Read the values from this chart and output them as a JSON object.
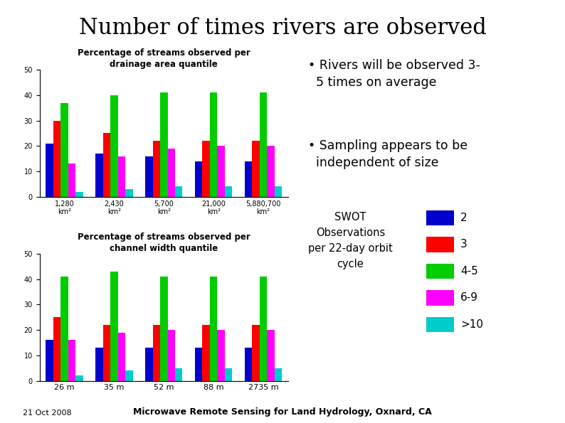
{
  "title": "Number of times rivers are observed",
  "title_fontsize": 22,
  "background_color": "#ffffff",
  "chart1_title": "Percentage of streams observed per\ndrainage area quantile",
  "chart1_categories": [
    "1,280\nkm²",
    "2,430\nkm²",
    "5,700\nkm²",
    "21,000\nkm²",
    "5,880,700\nkm²"
  ],
  "chart1_ylim": [
    0,
    50
  ],
  "chart1_yticks": [
    0,
    10,
    20,
    30,
    40,
    50
  ],
  "chart1_data": {
    "2": [
      21,
      17,
      16,
      14,
      14
    ],
    "3": [
      30,
      25,
      22,
      22,
      22
    ],
    "4-5": [
      37,
      40,
      41,
      41,
      41
    ],
    "6-9": [
      13,
      16,
      19,
      20,
      20
    ],
    ">10": [
      2,
      3,
      4,
      4,
      4
    ]
  },
  "chart2_title": "Percentage of streams observed per\nchannel width quantile",
  "chart2_categories": [
    "26 m",
    "35 m",
    "52 m",
    "88 m",
    "2735 m"
  ],
  "chart2_ylim": [
    0,
    50
  ],
  "chart2_yticks": [
    0,
    10,
    20,
    30,
    40,
    50
  ],
  "chart2_data": {
    "2": [
      16,
      13,
      13,
      13,
      13
    ],
    "3": [
      25,
      22,
      22,
      22,
      22
    ],
    "4-5": [
      41,
      43,
      41,
      41,
      41
    ],
    "6-9": [
      16,
      19,
      20,
      20,
      20
    ],
    ">10": [
      2,
      4,
      5,
      5,
      5
    ]
  },
  "bar_colors": {
    "2": "#0000cc",
    "3": "#ff0000",
    "4-5": "#00cc00",
    "6-9": "#ff00ff",
    ">10": "#00cccc"
  },
  "series_order": [
    "2",
    "3",
    "4-5",
    "6-9",
    ">10"
  ],
  "bullet1": "Rivers will be observed 3-\n5 times on average",
  "bullet2": "Sampling appears to be\nindependent of size",
  "legend_title": "SWOT\nObservations\nper 22-day orbit\ncycle",
  "legend_labels": [
    "2",
    "3",
    "4-5",
    "6-9",
    ">10"
  ],
  "footer_left": "21 Oct 2008",
  "footer_right": "Microwave Remote Sensing for Land Hydrology, Oxnard, CA"
}
